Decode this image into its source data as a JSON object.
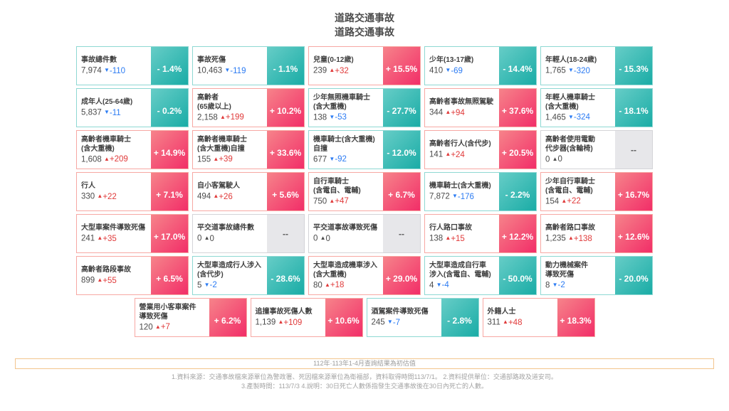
{
  "title": {
    "line1": "道路交通事故",
    "line2": "道路交通事故"
  },
  "colors": {
    "pink_light": "#f6838a",
    "pink_dark": "#f22e68",
    "teal_light": "#66cdc7",
    "teal_dark": "#1aaca6",
    "pink_border": "#f7a8a3",
    "teal_border": "#8ed8d3",
    "up_red": "#e03a3a",
    "down_blue": "#2b7bf3",
    "notice_border": "#f2c58d"
  },
  "cards": [
    {
      "title": [
        "事故總件數"
      ],
      "value": "7,974",
      "delta": "-110",
      "dir": "down",
      "pct": "- 1.4%",
      "tone": "down"
    },
    {
      "title": [
        "事故死傷"
      ],
      "value": "10,463",
      "delta": "-119",
      "dir": "down",
      "pct": "- 1.1%",
      "tone": "down"
    },
    {
      "title": [
        "兒童(0-12歲)"
      ],
      "value": "239",
      "delta": "+32",
      "dir": "up",
      "pct": "+ 15.5%",
      "tone": "up"
    },
    {
      "title": [
        "少年(13-17歲)"
      ],
      "value": "410",
      "delta": "-69",
      "dir": "down",
      "pct": "- 14.4%",
      "tone": "down"
    },
    {
      "title": [
        "年輕人(18-24歲)"
      ],
      "value": "1,765",
      "delta": "-320",
      "dir": "down",
      "pct": "- 15.3%",
      "tone": "down"
    },
    {
      "title": [
        "成年人(25-64歲)"
      ],
      "value": "5,837",
      "delta": "-11",
      "dir": "down",
      "pct": "- 0.2%",
      "tone": "down"
    },
    {
      "title": [
        "高齡者",
        "(65歲以上)"
      ],
      "value": "2,158",
      "delta": "+199",
      "dir": "up",
      "pct": "+ 10.2%",
      "tone": "up"
    },
    {
      "title": [
        "少年無照機車騎士",
        "(含大重機)"
      ],
      "value": "138",
      "delta": "-53",
      "dir": "down",
      "pct": "- 27.7%",
      "tone": "down"
    },
    {
      "title": [
        "高齡者事故無照駕駛"
      ],
      "value": "344",
      "delta": "+94",
      "dir": "up",
      "pct": "+ 37.6%",
      "tone": "up"
    },
    {
      "title": [
        "年輕人機車騎士",
        "(含大重機)"
      ],
      "value": "1,465",
      "delta": "-324",
      "dir": "down",
      "pct": "- 18.1%",
      "tone": "down"
    },
    {
      "title": [
        "高齡者機車騎士",
        "(含大重機)"
      ],
      "value": "1,608",
      "delta": "+209",
      "dir": "up",
      "pct": "+ 14.9%",
      "tone": "up"
    },
    {
      "title": [
        "高齡者機車騎士",
        "(含大重機)自撞"
      ],
      "value": "155",
      "delta": "+39",
      "dir": "up",
      "pct": "+ 33.6%",
      "tone": "up"
    },
    {
      "title": [
        "機車騎士(含大重機)",
        "自撞"
      ],
      "value": "677",
      "delta": "-92",
      "dir": "down",
      "pct": "- 12.0%",
      "tone": "down"
    },
    {
      "title": [
        "高齡者行人(含代步)"
      ],
      "value": "141",
      "delta": "+24",
      "dir": "up",
      "pct": "+ 20.5%",
      "tone": "up"
    },
    {
      "title": [
        "高齡者使用電動",
        "代步器(含輪椅)"
      ],
      "value": "0",
      "delta": "0",
      "dir": "zero",
      "pct": "--",
      "tone": "none"
    },
    {
      "title": [
        "行人"
      ],
      "value": "330",
      "delta": "+22",
      "dir": "up",
      "pct": "+ 7.1%",
      "tone": "up"
    },
    {
      "title": [
        "自小客駕駛人"
      ],
      "value": "494",
      "delta": "+26",
      "dir": "up",
      "pct": "+ 5.6%",
      "tone": "up"
    },
    {
      "title": [
        "自行車騎士",
        "(含電自、電輔)"
      ],
      "value": "750",
      "delta": "+47",
      "dir": "up",
      "pct": "+ 6.7%",
      "tone": "up"
    },
    {
      "title": [
        "機車騎士(含大重機)"
      ],
      "value": "7,872",
      "delta": "-176",
      "dir": "down",
      "pct": "- 2.2%",
      "tone": "down"
    },
    {
      "title": [
        "少年自行車騎士",
        "(含電自、電輔)"
      ],
      "value": "154",
      "delta": "+22",
      "dir": "up",
      "pct": "+ 16.7%",
      "tone": "up"
    },
    {
      "title": [
        "大型車案件導致死傷"
      ],
      "value": "241",
      "delta": "+35",
      "dir": "up",
      "pct": "+ 17.0%",
      "tone": "up"
    },
    {
      "title": [
        "平交道事故總件數"
      ],
      "value": "0",
      "delta": "0",
      "dir": "zero",
      "pct": "--",
      "tone": "none"
    },
    {
      "title": [
        "平交道事故導致死傷"
      ],
      "value": "0",
      "delta": "0",
      "dir": "zero",
      "pct": "--",
      "tone": "none"
    },
    {
      "title": [
        "行人路口事故"
      ],
      "value": "138",
      "delta": "+15",
      "dir": "up",
      "pct": "+ 12.2%",
      "tone": "up"
    },
    {
      "title": [
        "高齡者路口事故"
      ],
      "value": "1,235",
      "delta": "+138",
      "dir": "up",
      "pct": "+ 12.6%",
      "tone": "up"
    },
    {
      "title": [
        "高齡者路段事故"
      ],
      "value": "899",
      "delta": "+55",
      "dir": "up",
      "pct": "+ 6.5%",
      "tone": "up"
    },
    {
      "title": [
        "大型車造成行人涉入",
        "(含代步)"
      ],
      "value": "5",
      "delta": "-2",
      "dir": "down",
      "pct": "- 28.6%",
      "tone": "down"
    },
    {
      "title": [
        "大型車造成機車涉入",
        "(含大重機)"
      ],
      "value": "80",
      "delta": "+18",
      "dir": "up",
      "pct": "+ 29.0%",
      "tone": "up"
    },
    {
      "title": [
        "大型車造成自行車",
        "涉入(含電自、電輔)"
      ],
      "value": "4",
      "delta": "-4",
      "dir": "down",
      "pct": "- 50.0%",
      "tone": "down"
    },
    {
      "title": [
        "動力機械案件",
        "導致死傷"
      ],
      "value": "8",
      "delta": "-2",
      "dir": "down",
      "pct": "- 20.0%",
      "tone": "down"
    }
  ],
  "summary_cards": [
    {
      "title": [
        "營業用小客車案件",
        "導致死傷"
      ],
      "value": "120",
      "delta": "+7",
      "dir": "up",
      "pct": "+ 6.2%",
      "tone": "up"
    },
    {
      "title": [
        "追撞事故死傷人數"
      ],
      "value": "1,139",
      "delta": "+109",
      "dir": "up",
      "pct": "+ 10.6%",
      "tone": "up"
    },
    {
      "title": [
        "酒駕案件導致死傷"
      ],
      "value": "245",
      "delta": "-7",
      "dir": "down",
      "pct": "- 2.8%",
      "tone": "down"
    },
    {
      "title": [
        "外籍人士"
      ],
      "value": "311",
      "delta": "+48",
      "dir": "up",
      "pct": "+ 18.3%",
      "tone": "up"
    }
  ],
  "footer": {
    "notice": "112年·113年1-4月查詢結果為初估值",
    "note1": "1.資料來源：交通事故檔來源單位為警政署、死因檔來源單位為衛福部，資料取得時間113/7/1。 2.資料提供單位：交通部路政及道安司。",
    "note2": "3.產製時間：113/7/3 4.說明：30日死亡人數係指發生交通事故後在30日內死亡的人數。"
  }
}
